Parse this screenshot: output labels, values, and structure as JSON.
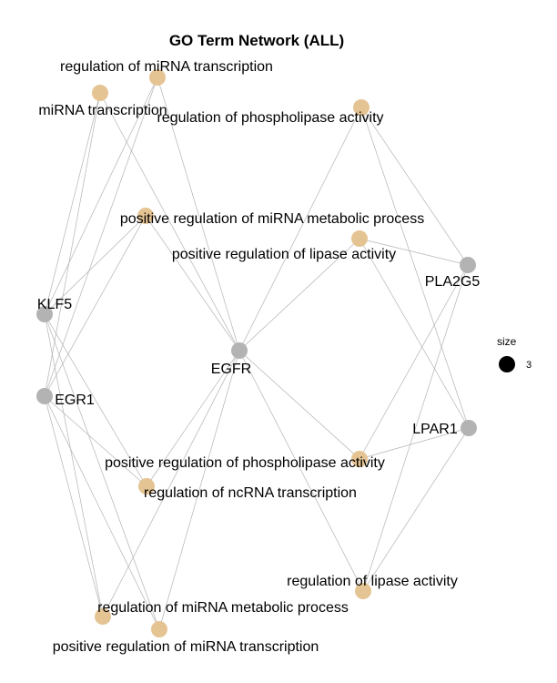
{
  "title": "GO Term Network (ALL)",
  "colors": {
    "term": "#E5C494",
    "gene": "#B3B3B3",
    "edge": "#B3B3B3",
    "legend_dot": "#000000"
  },
  "legend": {
    "title": "size",
    "value": "3"
  },
  "nodes": [
    {
      "id": "mirna_tx_reg",
      "label": "regulation of miRNA transcription",
      "type": "term"
    },
    {
      "id": "mirna_tx",
      "label": "miRNA transcription",
      "type": "term"
    },
    {
      "id": "phospholipase_reg",
      "label": "regulation of phospholipase activity",
      "type": "term"
    },
    {
      "id": "pos_mirna_metab",
      "label": "positive regulation of miRNA metabolic process",
      "type": "term"
    },
    {
      "id": "pos_lipase",
      "label": "positive regulation of lipase activity",
      "type": "term"
    },
    {
      "id": "pla2g5",
      "label": "PLA2G5",
      "type": "gene"
    },
    {
      "id": "klf5",
      "label": "KLF5",
      "type": "gene"
    },
    {
      "id": "egfr",
      "label": "EGFR",
      "type": "gene"
    },
    {
      "id": "egr1",
      "label": "EGR1",
      "type": "gene"
    },
    {
      "id": "lpar1",
      "label": "LPAR1",
      "type": "gene"
    },
    {
      "id": "pos_phospholipase",
      "label": "positive regulation of phospholipase activity",
      "type": "term"
    },
    {
      "id": "ncrna_tx_reg",
      "label": "regulation of ncRNA transcription",
      "type": "term"
    },
    {
      "id": "lipase_reg",
      "label": "regulation of lipase activity",
      "type": "term"
    },
    {
      "id": "mirna_metab_reg",
      "label": "regulation of miRNA metabolic process",
      "type": "term"
    },
    {
      "id": "pos_mirna_tx",
      "label": "positive regulation of miRNA transcription",
      "type": "term"
    }
  ],
  "edges": [
    [
      "klf5",
      "mirna_tx_reg"
    ],
    [
      "klf5",
      "mirna_tx"
    ],
    [
      "klf5",
      "pos_mirna_metab"
    ],
    [
      "klf5",
      "ncrna_tx_reg"
    ],
    [
      "klf5",
      "mirna_metab_reg"
    ],
    [
      "klf5",
      "pos_mirna_tx"
    ],
    [
      "egr1",
      "mirna_tx_reg"
    ],
    [
      "egr1",
      "mirna_tx"
    ],
    [
      "egr1",
      "pos_mirna_metab"
    ],
    [
      "egr1",
      "ncrna_tx_reg"
    ],
    [
      "egr1",
      "mirna_metab_reg"
    ],
    [
      "egr1",
      "pos_mirna_tx"
    ],
    [
      "egfr",
      "mirna_tx_reg"
    ],
    [
      "egfr",
      "mirna_tx"
    ],
    [
      "egfr",
      "pos_mirna_metab"
    ],
    [
      "egfr",
      "ncrna_tx_reg"
    ],
    [
      "egfr",
      "mirna_metab_reg"
    ],
    [
      "egfr",
      "pos_mirna_tx"
    ],
    [
      "egfr",
      "phospholipase_reg"
    ],
    [
      "egfr",
      "pos_lipase"
    ],
    [
      "egfr",
      "pos_phospholipase"
    ],
    [
      "egfr",
      "lipase_reg"
    ],
    [
      "pla2g5",
      "phospholipase_reg"
    ],
    [
      "pla2g5",
      "pos_lipase"
    ],
    [
      "pla2g5",
      "pos_phospholipase"
    ],
    [
      "pla2g5",
      "lipase_reg"
    ],
    [
      "lpar1",
      "phospholipase_reg"
    ],
    [
      "lpar1",
      "pos_lipase"
    ],
    [
      "lpar1",
      "pos_phospholipase"
    ],
    [
      "lpar1",
      "lipase_reg"
    ]
  ]
}
